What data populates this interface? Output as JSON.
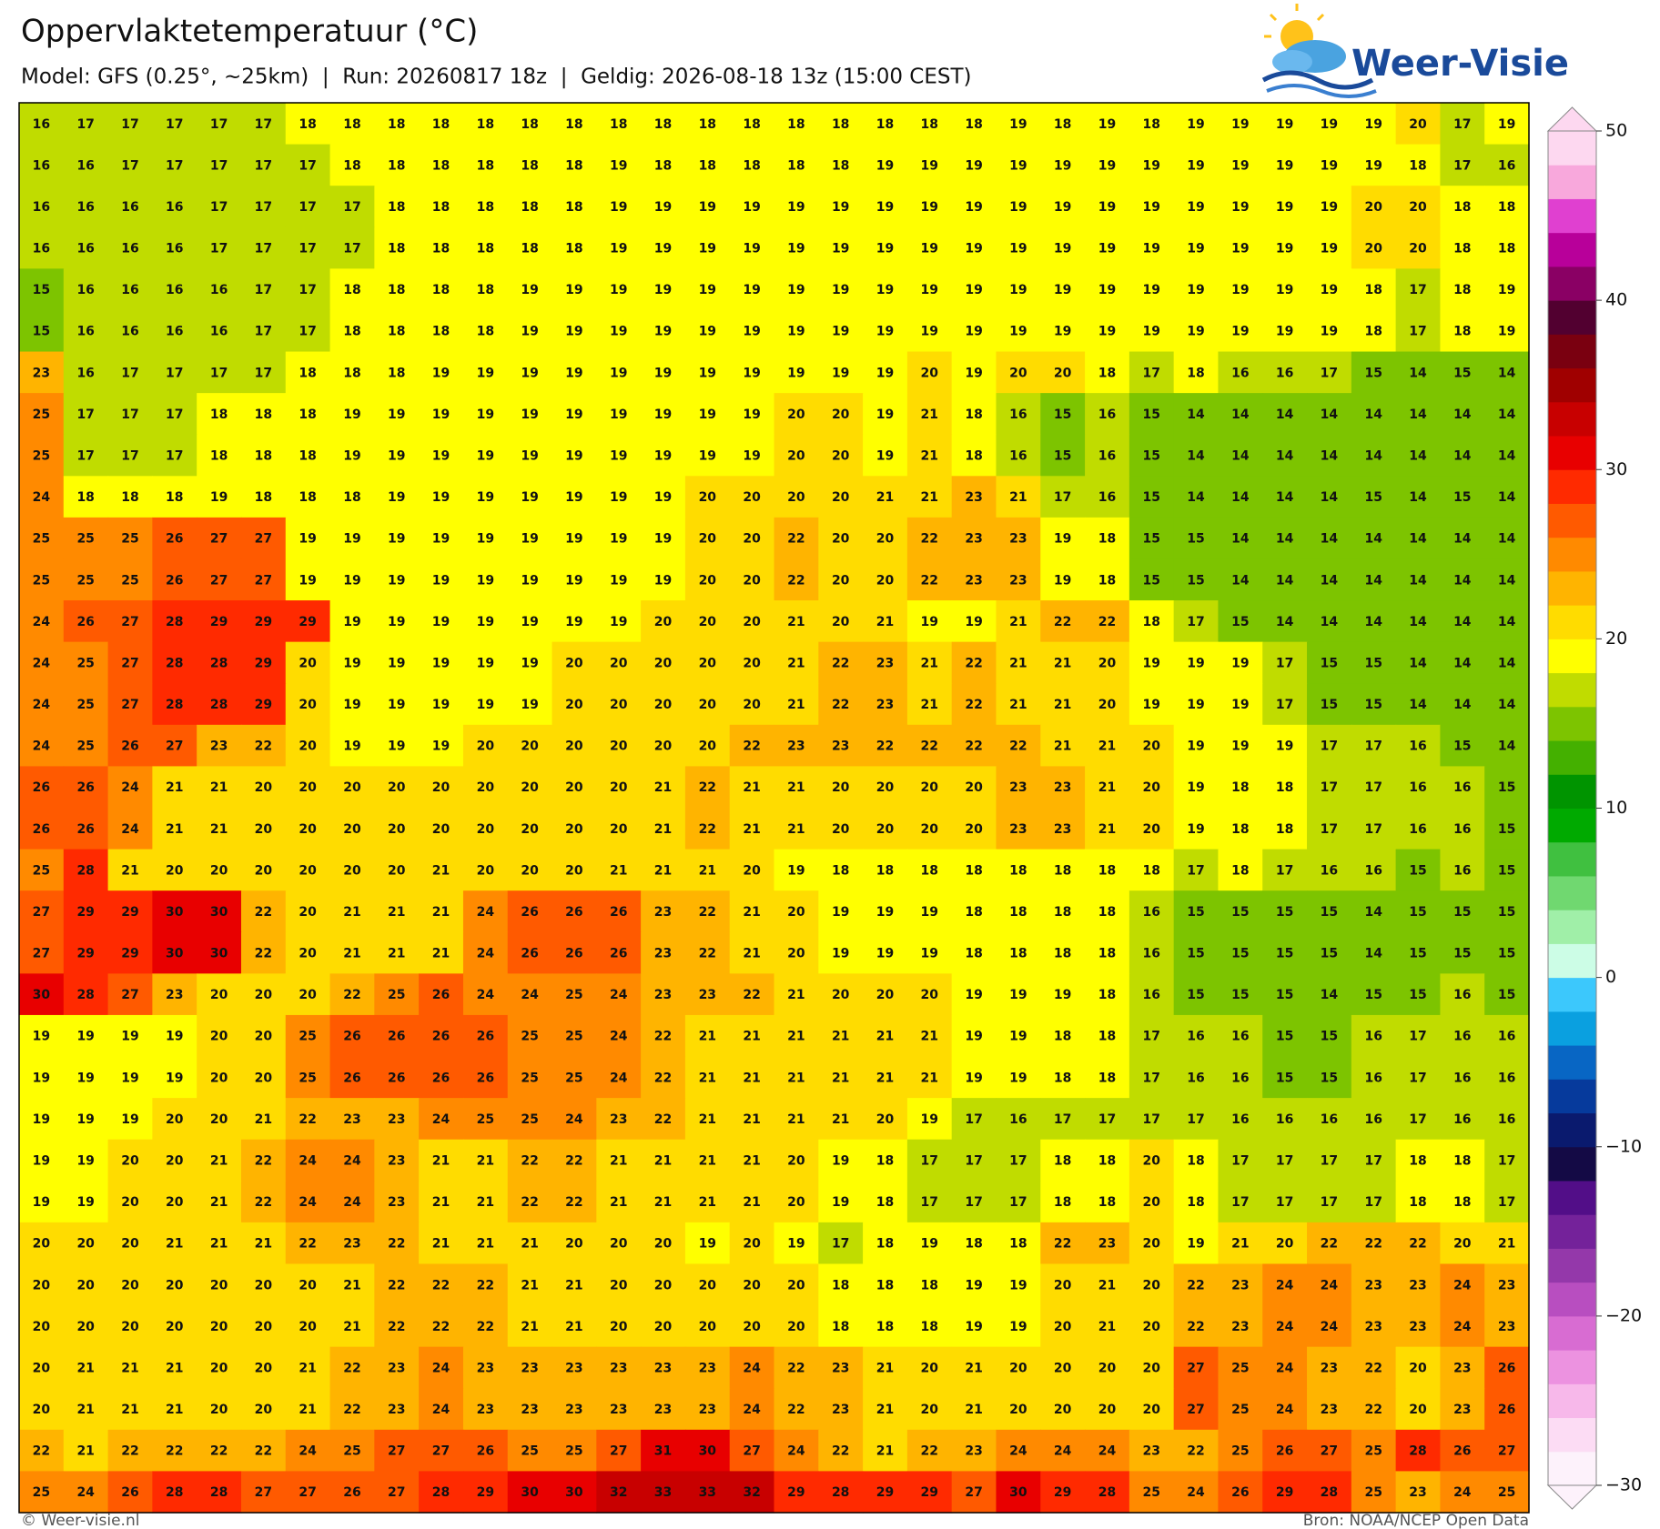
{
  "header": {
    "title": "Oppervlaktetemperatuur (°C)",
    "subtitle": "Model: GFS (0.25°, ~25km)  |  Run: 20260817 18z  |  Geldig: 2026-08-18 13z (15:00 CEST)"
  },
  "logo": {
    "text": "Weer-Visie"
  },
  "map": {
    "clim": [
      -30,
      50
    ],
    "colors": [
      "#fdf2fb",
      "#fcdcf4",
      "#f7b8ea",
      "#ec92e0",
      "#d86cd2",
      "#b84ec0",
      "#9438aa",
      "#74229a",
      "#520e88",
      "#140a45",
      "#0a1a6e",
      "#063a9c",
      "#0866c4",
      "#0aa0e0",
      "#3cc8fc",
      "#ccfde6",
      "#a0efa8",
      "#70d870",
      "#40c040",
      "#00aa00",
      "#009400",
      "#44b000",
      "#7dc400",
      "#c0dc00",
      "#ffff00",
      "#ffdc00",
      "#ffb400",
      "#ff8a00",
      "#ff5a00",
      "#ff2a00",
      "#e80000",
      "#c80000",
      "#a00000",
      "#7a0010",
      "#520030",
      "#8a0064",
      "#b8009a",
      "#e040d0",
      "#f8a8dc",
      "#fdd8f0"
    ],
    "colorbar_ticks": [
      50,
      40,
      30,
      20,
      10,
      0,
      {
        "value": -10,
        "label": "−10"
      },
      {
        "value": -20,
        "label": "−20"
      },
      {
        "value": -30,
        "label": "−30"
      }
    ],
    "rows": [
      [
        16,
        17,
        17,
        17,
        17,
        17,
        18,
        18,
        18,
        18,
        18,
        18,
        18,
        18,
        18,
        18,
        18,
        18,
        18,
        18,
        18,
        18,
        19,
        18,
        19,
        18,
        19,
        19,
        19,
        19,
        19,
        20,
        17,
        19
      ],
      [
        16,
        16,
        17,
        17,
        17,
        17,
        17,
        18,
        18,
        18,
        18,
        18,
        18,
        19,
        18,
        18,
        18,
        18,
        18,
        19,
        19,
        19,
        19,
        19,
        19,
        19,
        19,
        19,
        19,
        19,
        19,
        18,
        17,
        16
      ],
      [
        16,
        16,
        16,
        16,
        17,
        17,
        17,
        17,
        18,
        18,
        18,
        18,
        18,
        19,
        19,
        19,
        19,
        19,
        19,
        19,
        19,
        19,
        19,
        19,
        19,
        19,
        19,
        19,
        19,
        19,
        20,
        20,
        18,
        18
      ],
      [
        16,
        16,
        16,
        16,
        17,
        17,
        17,
        17,
        18,
        18,
        18,
        18,
        18,
        19,
        19,
        19,
        19,
        19,
        19,
        19,
        19,
        19,
        19,
        19,
        19,
        19,
        19,
        19,
        19,
        19,
        20,
        20,
        18,
        18
      ],
      [
        15,
        16,
        16,
        16,
        16,
        17,
        17,
        18,
        18,
        18,
        18,
        19,
        19,
        19,
        19,
        19,
        19,
        19,
        19,
        19,
        19,
        19,
        19,
        19,
        19,
        19,
        19,
        19,
        19,
        19,
        18,
        17,
        18,
        19
      ],
      [
        15,
        16,
        16,
        16,
        16,
        17,
        17,
        18,
        18,
        18,
        18,
        19,
        19,
        19,
        19,
        19,
        19,
        19,
        19,
        19,
        19,
        19,
        19,
        19,
        19,
        19,
        19,
        19,
        19,
        19,
        18,
        17,
        18,
        19
      ],
      [
        23,
        16,
        17,
        17,
        17,
        17,
        18,
        18,
        18,
        19,
        19,
        19,
        19,
        19,
        19,
        19,
        19,
        19,
        19,
        19,
        20,
        19,
        20,
        20,
        18,
        17,
        18,
        16,
        16,
        17,
        15,
        14,
        15,
        14
      ],
      [
        25,
        17,
        17,
        17,
        18,
        18,
        18,
        19,
        19,
        19,
        19,
        19,
        19,
        19,
        19,
        19,
        19,
        20,
        20,
        19,
        21,
        18,
        16,
        15,
        16,
        15,
        14,
        14,
        14,
        14,
        14,
        14,
        14,
        14
      ],
      [
        25,
        17,
        17,
        17,
        18,
        18,
        18,
        19,
        19,
        19,
        19,
        19,
        19,
        19,
        19,
        19,
        19,
        20,
        20,
        19,
        21,
        18,
        16,
        15,
        16,
        15,
        14,
        14,
        14,
        14,
        14,
        14,
        14,
        14
      ],
      [
        24,
        18,
        18,
        18,
        19,
        18,
        18,
        18,
        19,
        19,
        19,
        19,
        19,
        19,
        19,
        20,
        20,
        20,
        20,
        21,
        21,
        23,
        21,
        17,
        16,
        15,
        14,
        14,
        14,
        14,
        15,
        14,
        15,
        14
      ],
      [
        25,
        25,
        25,
        26,
        27,
        27,
        19,
        19,
        19,
        19,
        19,
        19,
        19,
        19,
        19,
        20,
        20,
        22,
        20,
        20,
        22,
        23,
        23,
        19,
        18,
        15,
        15,
        14,
        14,
        14,
        14,
        14,
        14,
        14
      ],
      [
        25,
        25,
        25,
        26,
        27,
        27,
        19,
        19,
        19,
        19,
        19,
        19,
        19,
        19,
        19,
        20,
        20,
        22,
        20,
        20,
        22,
        23,
        23,
        19,
        18,
        15,
        15,
        14,
        14,
        14,
        14,
        14,
        14,
        14
      ],
      [
        24,
        26,
        27,
        28,
        29,
        29,
        29,
        19,
        19,
        19,
        19,
        19,
        19,
        19,
        20,
        20,
        20,
        21,
        20,
        21,
        19,
        19,
        21,
        22,
        22,
        18,
        17,
        15,
        14,
        14,
        14,
        14,
        14,
        14
      ],
      [
        24,
        25,
        27,
        28,
        28,
        29,
        20,
        19,
        19,
        19,
        19,
        19,
        20,
        20,
        20,
        20,
        20,
        21,
        22,
        23,
        21,
        22,
        21,
        21,
        20,
        19,
        19,
        19,
        17,
        15,
        15,
        14,
        14,
        14
      ],
      [
        24,
        25,
        27,
        28,
        28,
        29,
        20,
        19,
        19,
        19,
        19,
        19,
        20,
        20,
        20,
        20,
        20,
        21,
        22,
        23,
        21,
        22,
        21,
        21,
        20,
        19,
        19,
        19,
        17,
        15,
        15,
        14,
        14,
        14
      ],
      [
        24,
        25,
        26,
        27,
        23,
        22,
        20,
        19,
        19,
        19,
        20,
        20,
        20,
        20,
        20,
        20,
        22,
        23,
        23,
        22,
        22,
        22,
        22,
        21,
        21,
        20,
        19,
        19,
        19,
        17,
        17,
        16,
        15,
        14
      ],
      [
        26,
        26,
        24,
        21,
        21,
        20,
        20,
        20,
        20,
        20,
        20,
        20,
        20,
        20,
        21,
        22,
        21,
        21,
        20,
        20,
        20,
        20,
        23,
        23,
        21,
        20,
        19,
        18,
        18,
        17,
        17,
        16,
        16,
        15
      ],
      [
        26,
        26,
        24,
        21,
        21,
        20,
        20,
        20,
        20,
        20,
        20,
        20,
        20,
        20,
        21,
        22,
        21,
        21,
        20,
        20,
        20,
        20,
        23,
        23,
        21,
        20,
        19,
        18,
        18,
        17,
        17,
        16,
        16,
        15
      ],
      [
        25,
        28,
        21,
        20,
        20,
        20,
        20,
        20,
        20,
        21,
        20,
        20,
        20,
        21,
        21,
        21,
        20,
        19,
        18,
        18,
        18,
        18,
        18,
        18,
        18,
        18,
        17,
        18,
        17,
        16,
        16,
        15,
        16,
        15
      ],
      [
        27,
        29,
        29,
        30,
        30,
        22,
        20,
        21,
        21,
        21,
        24,
        26,
        26,
        26,
        23,
        22,
        21,
        20,
        19,
        19,
        19,
        18,
        18,
        18,
        18,
        16,
        15,
        15,
        15,
        15,
        14,
        15,
        15,
        15
      ],
      [
        27,
        29,
        29,
        30,
        30,
        22,
        20,
        21,
        21,
        21,
        24,
        26,
        26,
        26,
        23,
        22,
        21,
        20,
        19,
        19,
        19,
        18,
        18,
        18,
        18,
        16,
        15,
        15,
        15,
        15,
        14,
        15,
        15,
        15
      ],
      [
        30,
        28,
        27,
        23,
        20,
        20,
        20,
        22,
        25,
        26,
        24,
        24,
        25,
        24,
        23,
        23,
        22,
        21,
        20,
        20,
        20,
        19,
        19,
        19,
        18,
        16,
        15,
        15,
        15,
        14,
        15,
        15,
        16,
        15
      ],
      [
        19,
        19,
        19,
        19,
        20,
        20,
        25,
        26,
        26,
        26,
        26,
        25,
        25,
        24,
        22,
        21,
        21,
        21,
        21,
        21,
        21,
        19,
        19,
        18,
        18,
        17,
        16,
        16,
        15,
        15,
        16,
        17,
        16,
        16
      ],
      [
        19,
        19,
        19,
        19,
        20,
        20,
        25,
        26,
        26,
        26,
        26,
        25,
        25,
        24,
        22,
        21,
        21,
        21,
        21,
        21,
        21,
        19,
        19,
        18,
        18,
        17,
        16,
        16,
        15,
        15,
        16,
        17,
        16,
        16
      ],
      [
        19,
        19,
        19,
        20,
        20,
        21,
        22,
        23,
        23,
        24,
        25,
        25,
        24,
        23,
        22,
        21,
        21,
        21,
        21,
        20,
        19,
        17,
        16,
        17,
        17,
        17,
        17,
        16,
        16,
        16,
        16,
        17,
        16,
        16
      ],
      [
        19,
        19,
        20,
        20,
        21,
        22,
        24,
        24,
        23,
        21,
        21,
        22,
        22,
        21,
        21,
        21,
        21,
        20,
        19,
        18,
        17,
        17,
        17,
        18,
        18,
        20,
        18,
        17,
        17,
        17,
        17,
        18,
        18,
        17
      ],
      [
        19,
        19,
        20,
        20,
        21,
        22,
        24,
        24,
        23,
        21,
        21,
        22,
        22,
        21,
        21,
        21,
        21,
        20,
        19,
        18,
        17,
        17,
        17,
        18,
        18,
        20,
        18,
        17,
        17,
        17,
        17,
        18,
        18,
        17
      ],
      [
        20,
        20,
        20,
        21,
        21,
        21,
        22,
        23,
        22,
        21,
        21,
        21,
        20,
        20,
        20,
        19,
        20,
        19,
        17,
        18,
        19,
        18,
        18,
        22,
        23,
        20,
        19,
        21,
        20,
        22,
        22,
        22,
        20,
        21
      ],
      [
        20,
        20,
        20,
        20,
        20,
        20,
        20,
        21,
        22,
        22,
        22,
        21,
        21,
        20,
        20,
        20,
        20,
        20,
        18,
        18,
        18,
        19,
        19,
        20,
        21,
        20,
        22,
        23,
        24,
        24,
        23,
        23,
        24,
        23
      ],
      [
        20,
        20,
        20,
        20,
        20,
        20,
        20,
        21,
        22,
        22,
        22,
        21,
        21,
        20,
        20,
        20,
        20,
        20,
        18,
        18,
        18,
        19,
        19,
        20,
        21,
        20,
        22,
        23,
        24,
        24,
        23,
        23,
        24,
        23
      ],
      [
        20,
        21,
        21,
        21,
        20,
        20,
        21,
        22,
        23,
        24,
        23,
        23,
        23,
        23,
        23,
        23,
        24,
        22,
        23,
        21,
        20,
        21,
        20,
        20,
        20,
        20,
        27,
        25,
        24,
        23,
        22,
        20,
        23,
        26
      ],
      [
        20,
        21,
        21,
        21,
        20,
        20,
        21,
        22,
        23,
        24,
        23,
        23,
        23,
        23,
        23,
        23,
        24,
        22,
        23,
        21,
        20,
        21,
        20,
        20,
        20,
        20,
        27,
        25,
        24,
        23,
        22,
        20,
        23,
        26
      ],
      [
        22,
        21,
        22,
        22,
        22,
        22,
        24,
        25,
        27,
        27,
        26,
        25,
        25,
        27,
        31,
        30,
        27,
        24,
        22,
        21,
        22,
        23,
        24,
        24,
        24,
        23,
        22,
        25,
        26,
        27,
        25,
        28,
        26,
        27
      ],
      [
        25,
        24,
        26,
        28,
        28,
        27,
        27,
        26,
        27,
        28,
        29,
        30,
        30,
        32,
        33,
        33,
        32,
        29,
        28,
        29,
        29,
        27,
        30,
        29,
        28,
        25,
        24,
        26,
        29,
        28,
        25,
        23,
        24,
        25
      ]
    ]
  },
  "footer": {
    "credit": "© Weer-visie.nl",
    "source": "Bron: NOAA/NCEP Open Data"
  }
}
